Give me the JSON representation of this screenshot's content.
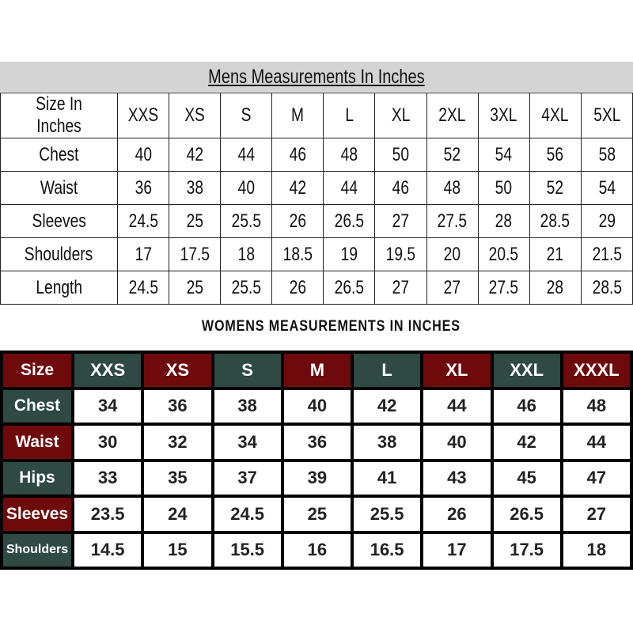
{
  "mens": {
    "title": "Mens Measurements In Inches",
    "header": [
      "Size In Inches",
      "XXS",
      "XS",
      "S",
      "M",
      "L",
      "XL",
      "2XL",
      "3XL",
      "4XL",
      "5XL"
    ],
    "rows": [
      [
        "Chest",
        "40",
        "42",
        "44",
        "46",
        "48",
        "50",
        "52",
        "54",
        "56",
        "58"
      ],
      [
        "Waist",
        "36",
        "38",
        "40",
        "42",
        "44",
        "46",
        "48",
        "50",
        "52",
        "54"
      ],
      [
        "Sleeves",
        "24.5",
        "25",
        "25.5",
        "26",
        "26.5",
        "27",
        "27.5",
        "28",
        "28.5",
        "29"
      ],
      [
        "Shoulders",
        "17",
        "17.5",
        "18",
        "18.5",
        "19",
        "19.5",
        "20",
        "20.5",
        "21",
        "21.5"
      ],
      [
        "Length",
        "24.5",
        "25",
        "25.5",
        "26",
        "26.5",
        "27",
        "27",
        "27.5",
        "28",
        "28.5"
      ]
    ]
  },
  "womens": {
    "title": "WOMENS MEASUREMENTS IN INCHES",
    "header": [
      "Size",
      "XXS",
      "XS",
      "S",
      "M",
      "L",
      "XL",
      "XXL",
      "XXXL"
    ],
    "rows": [
      [
        "Chest",
        "34",
        "36",
        "38",
        "40",
        "42",
        "44",
        "46",
        "48"
      ],
      [
        "Waist",
        "30",
        "32",
        "34",
        "36",
        "38",
        "40",
        "42",
        "44"
      ],
      [
        "Hips",
        "33",
        "35",
        "37",
        "39",
        "41",
        "43",
        "45",
        "47"
      ],
      [
        "Sleeves",
        "23.5",
        "24",
        "24.5",
        "25",
        "25.5",
        "26",
        "26.5",
        "27"
      ],
      [
        "Shoulders",
        "14.5",
        "15",
        "15.5",
        "16",
        "16.5",
        "17",
        "17.5",
        "18"
      ]
    ]
  },
  "colors": {
    "maroon": "#6f0a0c",
    "green": "#2f4944",
    "title_bar": "#d4d4d4"
  }
}
